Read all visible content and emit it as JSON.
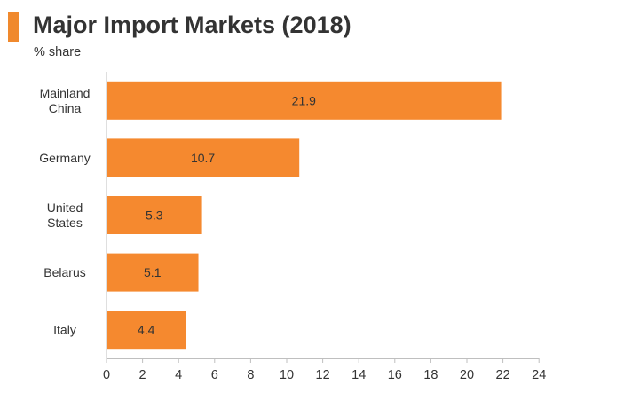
{
  "header": {
    "title": "Major Import Markets (2018)",
    "subtitle": "% share",
    "accent_color": "#f0892d"
  },
  "chart_data": {
    "type": "bar",
    "orientation": "horizontal",
    "title": "Major Import Markets (2018)",
    "subtitle": "% share",
    "categories": [
      [
        "Mainland",
        "China"
      ],
      [
        "Germany"
      ],
      [
        "United",
        "States"
      ],
      [
        "Belarus"
      ],
      [
        "Italy"
      ]
    ],
    "values": [
      21.9,
      10.7,
      5.3,
      5.1,
      4.4
    ],
    "data_labels": [
      "21.9",
      "10.7",
      "5.3",
      "5.1",
      "4.4"
    ],
    "xlim": [
      0,
      24
    ],
    "xticks": [
      0,
      2,
      4,
      6,
      8,
      10,
      12,
      14,
      16,
      18,
      20,
      22,
      24
    ],
    "xlabel": "",
    "ylabel": "",
    "grid": false,
    "legend": "none",
    "bar_color": "#f5892f",
    "axis_color": "#bfbfbf",
    "text_color": "#333333"
  }
}
